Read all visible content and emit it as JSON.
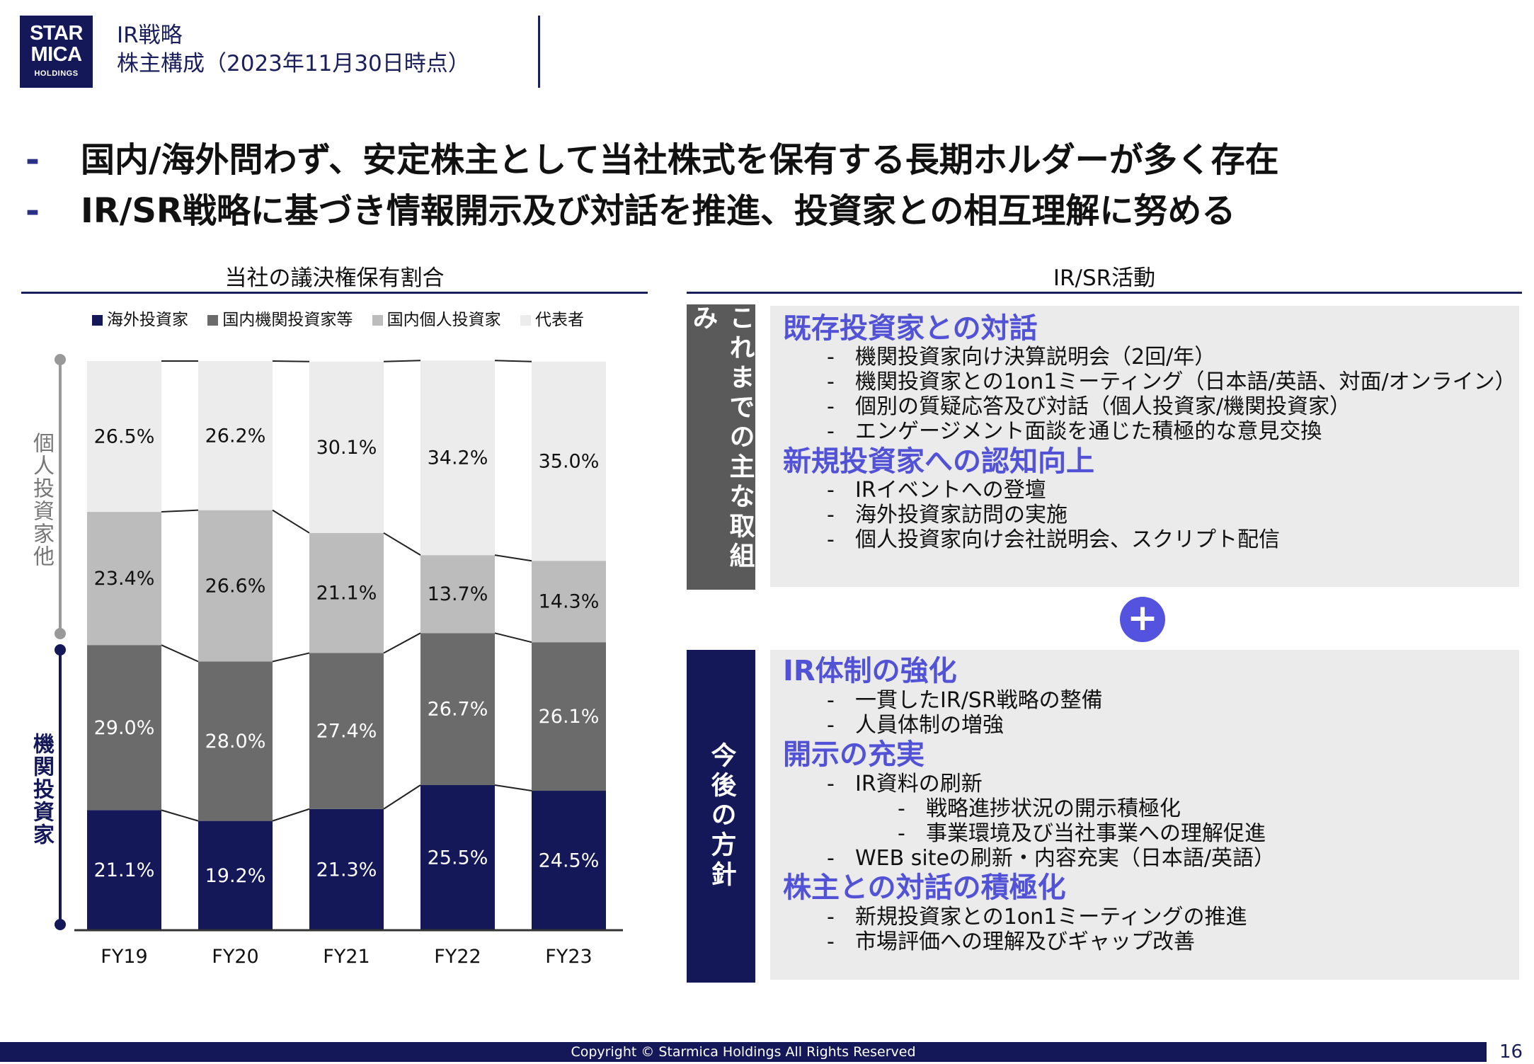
{
  "logo": {
    "line1": "STAR",
    "line2": "MICA",
    "line3": "HOLDINGS"
  },
  "header": {
    "title": "IR戦略",
    "subtitle": "株主構成（2023年11月30日時点）"
  },
  "bullets": [
    {
      "dash": "-",
      "text": "国内/海外問わず、安定株主として当社株式を保有する長期ホルダーが多く存在"
    },
    {
      "dash": "-",
      "text": "IR/SR戦略に基づき情報開示及び対話を推進、投資家との相互理解に努める"
    }
  ],
  "left_section": {
    "title": "当社の議決権保有割合"
  },
  "right_section": {
    "title": "IR/SR活動"
  },
  "side_labels": {
    "upper": "個人投資家他",
    "lower": "機関投資家"
  },
  "chart_data": {
    "type": "bar",
    "stacked": true,
    "categories": [
      "FY19",
      "FY20",
      "FY21",
      "FY22",
      "FY23"
    ],
    "series": [
      {
        "name": "海外投資家",
        "color": "#141858",
        "values": [
          21.1,
          19.2,
          21.3,
          25.5,
          24.5
        ],
        "labels": [
          "21.1%",
          "19.2%",
          "21.3%",
          "25.5%",
          "24.5%"
        ]
      },
      {
        "name": "国内機関投資家等",
        "color": "#6b6b6b",
        "values": [
          29.0,
          28.0,
          27.4,
          26.7,
          26.1
        ],
        "labels": [
          "29.0%",
          "28.0%",
          "27.4%",
          "26.7%",
          "26.1%"
        ]
      },
      {
        "name": "国内個人投資家",
        "color": "#bcbcbc",
        "values": [
          23.4,
          26.6,
          21.1,
          13.7,
          14.3
        ],
        "labels": [
          "23.4%",
          "26.6%",
          "21.1%",
          "13.7%",
          "14.3%"
        ]
      },
      {
        "name": "代表者",
        "color": "#ececec",
        "values": [
          26.5,
          26.2,
          30.1,
          34.2,
          35.0
        ],
        "labels": [
          "26.5%",
          "26.2%",
          "30.1%",
          "34.2%",
          "35.0%"
        ]
      }
    ],
    "ylim": [
      0,
      100
    ],
    "legend": "top"
  },
  "panel_existing": {
    "tab": "これまでの主な取組み",
    "groups": [
      {
        "heading": "既存投資家との対話",
        "items": [
          "機関投資家向け決算説明会（2回/年）",
          "機関投資家との1on1ミーティング（日本語/英語、対面/オンライン）",
          "個別の質疑応答及び対話（個人投資家/機関投資家）",
          "エンゲージメント面談を通じた積極的な意見交換"
        ]
      },
      {
        "heading": "新規投資家への認知向上",
        "items": [
          "IRイベントへの登壇",
          "海外投資家訪問の実施",
          "個人投資家向け会社説明会、スクリプト配信"
        ]
      }
    ]
  },
  "plus_symbol": "+",
  "panel_future": {
    "tab": "今後の方針",
    "groups": [
      {
        "heading": "IR体制の強化",
        "items": [
          "一貫したIR/SR戦略の整備",
          "人員体制の増強"
        ]
      },
      {
        "heading": "開示の充実",
        "items": [
          "IR資料の刷新"
        ],
        "subitems": [
          "戦略進捗状況の開示積極化",
          "事業環境及び当社事業への理解促進"
        ],
        "items_after": [
          "WEB siteの刷新・内容充実（日本語/英語）"
        ]
      },
      {
        "heading": "株主との対話の積極化",
        "items": [
          "新規投資家との1on1ミーティングの推進",
          "市場評価への理解及びギャップ改善"
        ]
      }
    ]
  },
  "item_dash": "-",
  "footer": {
    "copyright": "Copyright © Starmica Holdings All Rights Reserved",
    "page": "16"
  }
}
